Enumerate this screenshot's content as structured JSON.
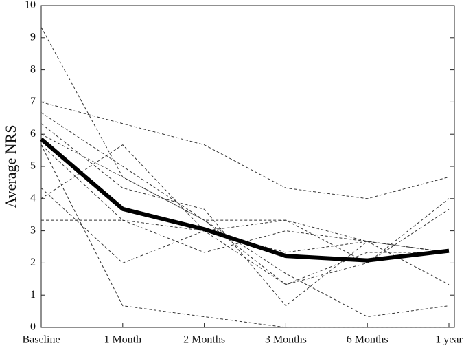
{
  "chart_data": {
    "type": "line",
    "y_label": "Average NRS",
    "categories": [
      "Baseline",
      "1 Month",
      "2 Months",
      "3 Months",
      "6 Months",
      "1 year"
    ],
    "ylim": [
      0,
      10
    ],
    "yticks": [
      0,
      1,
      2,
      3,
      4,
      5,
      6,
      7,
      8,
      9,
      10
    ],
    "series": [
      {
        "color": "#333333",
        "linestyle": "dashed",
        "linewidth": 1,
        "values": [
          9.33,
          4.67,
          3.33,
          1.33,
          2.33,
          2.33
        ]
      },
      {
        "color": "#333333",
        "linestyle": "dashed",
        "linewidth": 1,
        "values": [
          7.0,
          6.33,
          5.67,
          4.33,
          4.0,
          4.67
        ]
      },
      {
        "color": "#333333",
        "linestyle": "dashed",
        "linewidth": 1,
        "values": [
          6.67,
          5.0,
          3.33,
          3.33,
          2.0,
          4.0
        ]
      },
      {
        "color": "#333333",
        "linestyle": "dashed",
        "linewidth": 1,
        "values": [
          6.33,
          4.33,
          3.67,
          0.67,
          2.67,
          1.33
        ]
      },
      {
        "color": "#333333",
        "linestyle": "dashed",
        "linewidth": 1,
        "values": [
          5.67,
          0.67,
          0.33,
          0,
          0,
          0
        ]
      },
      {
        "color": "#333333",
        "linestyle": "dashed",
        "linewidth": 1,
        "values": [
          4.33,
          2.0,
          3.0,
          3.33,
          2.67,
          2.33
        ]
      },
      {
        "color": "#333333",
        "linestyle": "dashed",
        "linewidth": 1,
        "values": [
          4.0,
          5.67,
          3.0,
          2.33,
          2.67,
          2.33
        ]
      },
      {
        "color": "#333333",
        "linestyle": "dashed",
        "linewidth": 1,
        "values": [
          3.33,
          3.33,
          2.33,
          3.0,
          2.67,
          2.33
        ]
      },
      {
        "color": "#333333",
        "linestyle": "dashed",
        "linewidth": 1,
        "values": [
          6.0,
          4.67,
          3.33,
          1.67,
          0.33,
          0.67
        ]
      },
      {
        "color": "#333333",
        "linestyle": "dashed",
        "linewidth": 1,
        "values": [
          5.67,
          3.33,
          3.0,
          1.33,
          2.0,
          3.67
        ]
      },
      {
        "color": "#000000",
        "linestyle": "solid",
        "linewidth": 6,
        "values": [
          5.85,
          3.68,
          3.05,
          2.22,
          2.08,
          2.38
        ]
      }
    ]
  }
}
